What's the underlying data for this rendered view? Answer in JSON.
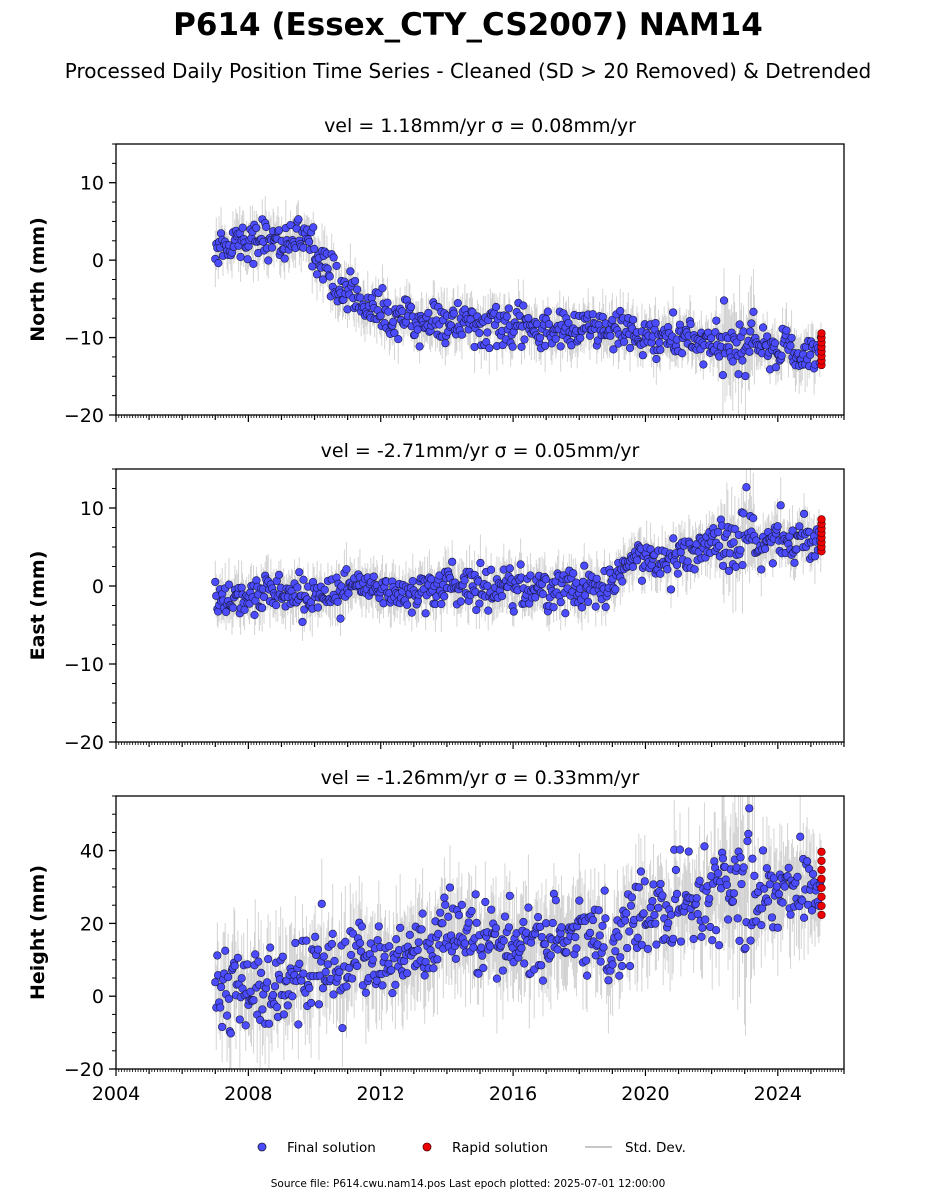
{
  "title": "P614 (Essex_CTY_CS2007) NAM14",
  "subtitle": "Processed Daily Position Time Series - Cleaned (SD > 20 Removed) & Detrended",
  "footer": "Source file: P614.cwu.nam14.pos  Last epoch plotted: 2025-07-01 12:00:00",
  "legend": {
    "final": "Final solution",
    "rapid": "Rapid solution",
    "std": "Std. Dev.",
    "placement": "bottom-center"
  },
  "colors": {
    "final": "#4b4bff",
    "rapid": "#ee0000",
    "std": "#b0b0b0",
    "edge": "#1a1a40"
  },
  "chart_data": [
    {
      "type": "scatter",
      "title": "vel = 1.18mm/yr   σ = 0.08mm/yr",
      "ylabel": "North (mm)",
      "xlim": [
        2004,
        2026
      ],
      "ylim": [
        -20,
        15
      ],
      "yticks": [
        -20,
        -10,
        0,
        10
      ],
      "ytick_labels": [
        "−20",
        "−10",
        "0",
        "10"
      ],
      "grid": false,
      "series": [
        {
          "name": "Final solution",
          "x": [
            2007.0,
            2007.5,
            2008.0,
            2008.5,
            2009.0,
            2009.5,
            2010.0,
            2010.5,
            2011.0,
            2011.5,
            2012.0,
            2013.0,
            2014.0,
            2015.0,
            2016.0,
            2017.0,
            2018.0,
            2019.0,
            2020.0,
            2021.0,
            2022.0,
            2022.5,
            2023.0,
            2024.0,
            2025.0,
            2025.3
          ],
          "y": [
            1.5,
            2.5,
            2.5,
            3.0,
            2.5,
            2.5,
            2.0,
            -2.5,
            -4.0,
            -5.5,
            -7.0,
            -8.0,
            -8.0,
            -8.5,
            -9.0,
            -9.0,
            -9.0,
            -9.0,
            -10.0,
            -10.0,
            -11.0,
            -12.0,
            -11.0,
            -11.5,
            -12.0,
            -12.0
          ]
        },
        {
          "name": "Rapid solution",
          "x": [
            2025.3
          ],
          "y": [
            -11.5
          ]
        }
      ]
    },
    {
      "type": "scatter",
      "title": "vel = -2.71mm/yr   σ = 0.05mm/yr",
      "ylabel": "East (mm)",
      "xlim": [
        2004,
        2026
      ],
      "ylim": [
        -20,
        15
      ],
      "yticks": [
        -20,
        -10,
        0,
        10
      ],
      "ytick_labels": [
        "−20",
        "−10",
        "0",
        "10"
      ],
      "grid": false,
      "series": [
        {
          "name": "Final solution",
          "x": [
            2007.0,
            2007.5,
            2008.0,
            2009.0,
            2010.0,
            2011.0,
            2012.0,
            2013.0,
            2014.0,
            2015.0,
            2016.0,
            2017.0,
            2018.0,
            2019.0,
            2019.5,
            2020.0,
            2021.0,
            2022.0,
            2022.5,
            2023.0,
            2024.0,
            2025.0,
            2025.3
          ],
          "y": [
            -1.5,
            -1.5,
            -1.0,
            -1.0,
            -1.0,
            -0.5,
            -0.5,
            -0.5,
            0.0,
            0.0,
            0.0,
            -0.5,
            -0.5,
            -0.5,
            3.0,
            3.5,
            4.0,
            5.5,
            5.5,
            5.0,
            6.0,
            6.0,
            6.5
          ]
        },
        {
          "name": "Rapid solution",
          "x": [
            2025.3
          ],
          "y": [
            6.5
          ]
        }
      ]
    },
    {
      "type": "scatter",
      "title": "vel = -1.26mm/yr   σ = 0.33mm/yr",
      "ylabel": "Height (mm)",
      "xlim": [
        2004,
        2026
      ],
      "xticks": [
        2004,
        2008,
        2012,
        2016,
        2020,
        2024
      ],
      "ylim": [
        -20,
        55
      ],
      "yticks": [
        -20,
        0,
        20,
        40
      ],
      "ytick_labels": [
        "−20",
        "0",
        "20",
        "40"
      ],
      "grid": false,
      "series": [
        {
          "name": "Final solution",
          "x": [
            2007.0,
            2007.5,
            2008.0,
            2008.5,
            2009.0,
            2010.0,
            2011.0,
            2012.0,
            2013.0,
            2014.0,
            2015.0,
            2016.0,
            2017.0,
            2018.0,
            2019.0,
            2020.0,
            2021.0,
            2022.0,
            2023.0,
            2024.0,
            2025.0,
            2025.3
          ],
          "y": [
            2,
            4,
            2,
            1,
            2,
            6,
            9,
            10,
            13,
            15,
            14,
            15,
            16,
            16,
            15,
            22,
            25,
            28,
            28,
            29,
            30,
            31
          ]
        },
        {
          "name": "Rapid solution",
          "x": [
            2025.3
          ],
          "y": [
            31
          ]
        }
      ]
    }
  ]
}
